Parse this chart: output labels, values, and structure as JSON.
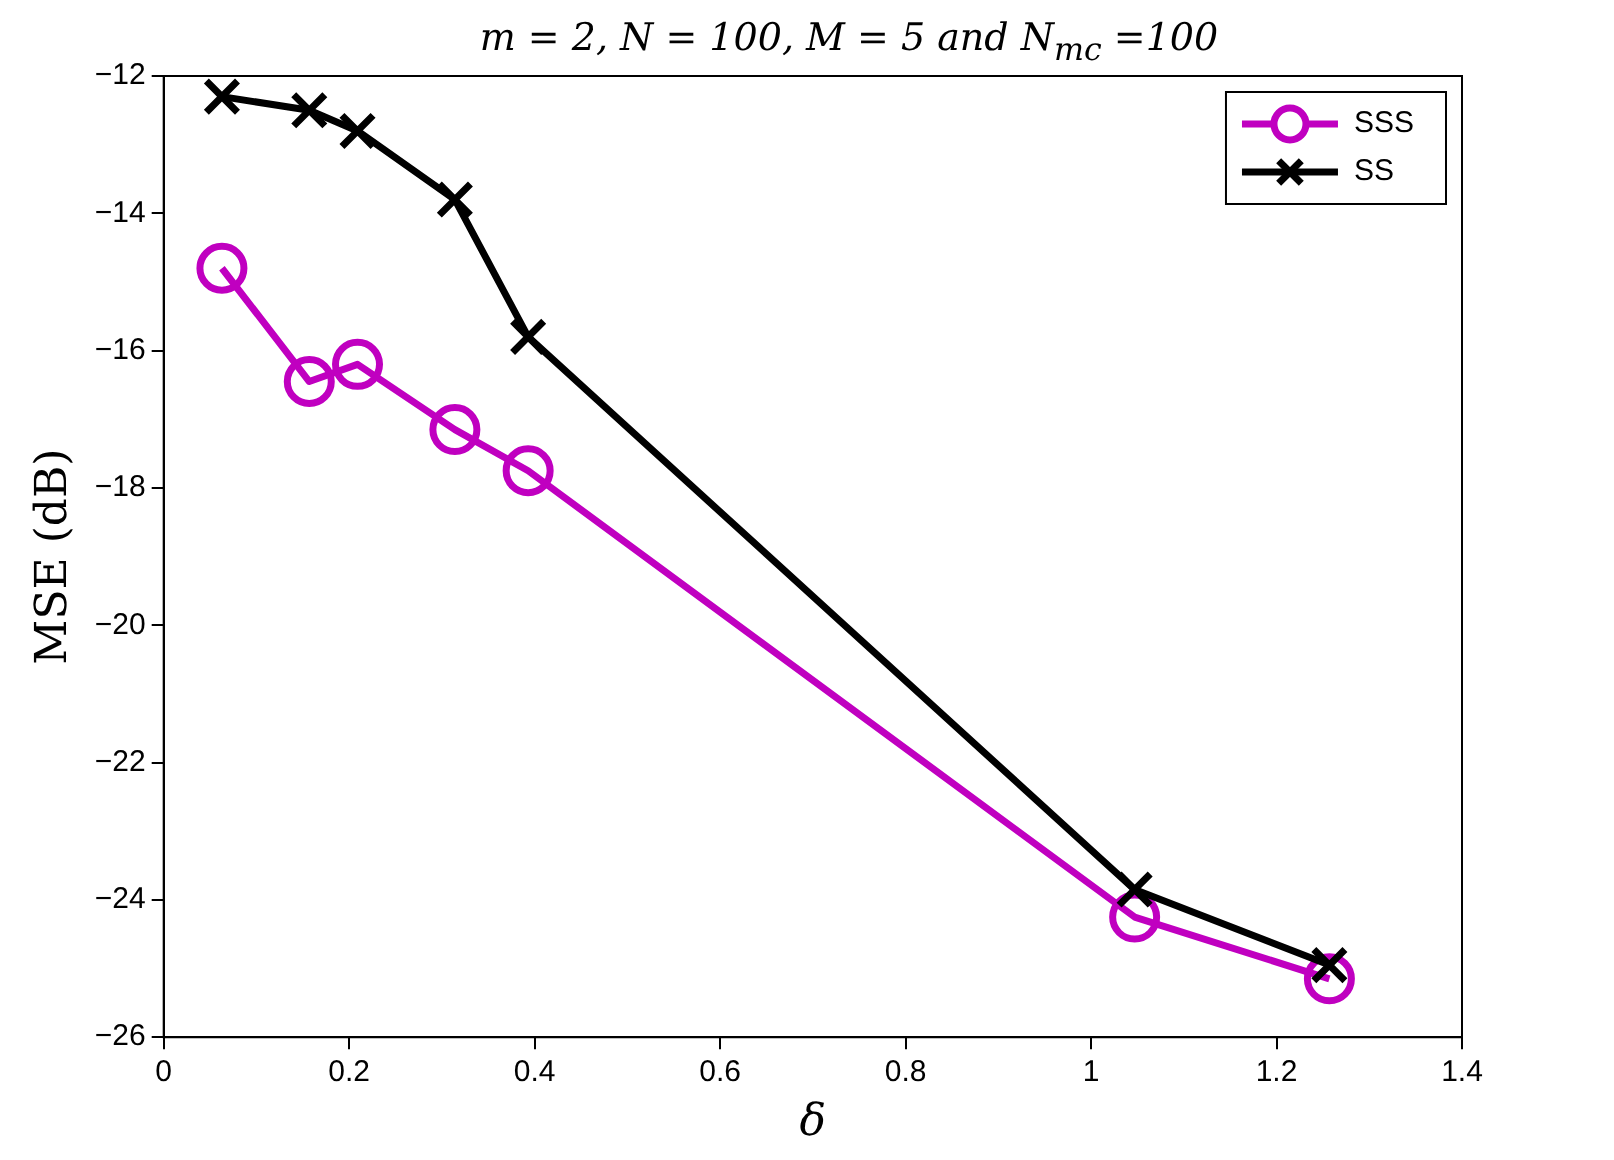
{
  "chart_data": {
    "type": "line",
    "title": "m = 2, N = 100, M = 5 and N$_{mc}$ =100",
    "xlabel": "δ",
    "ylabel": "MSE (dB)",
    "x": [
      0.0628,
      0.157,
      0.209,
      0.314,
      0.393,
      1.047,
      1.257
    ],
    "series": [
      {
        "name": "SSS",
        "color": "#c000c0",
        "marker": "circle",
        "values": [
          -14.8,
          -16.45,
          -16.2,
          -17.15,
          -17.75,
          -24.25,
          -25.15
        ]
      },
      {
        "name": "SS",
        "color": "#000000",
        "marker": "cross",
        "values": [
          -12.3,
          -12.5,
          -12.8,
          -13.8,
          -15.8,
          -23.85,
          -24.95
        ]
      }
    ],
    "xlim": [
      0,
      1.4
    ],
    "xticks": [
      0,
      0.2,
      0.4,
      0.6,
      0.8,
      1,
      1.2,
      1.4
    ],
    "ylim": [
      -26,
      -12
    ],
    "yticks": [
      -26,
      -24,
      -22,
      -20,
      -18,
      -16,
      -14,
      -12
    ],
    "grid": false,
    "legend": "top right",
    "line_style": "solid"
  }
}
